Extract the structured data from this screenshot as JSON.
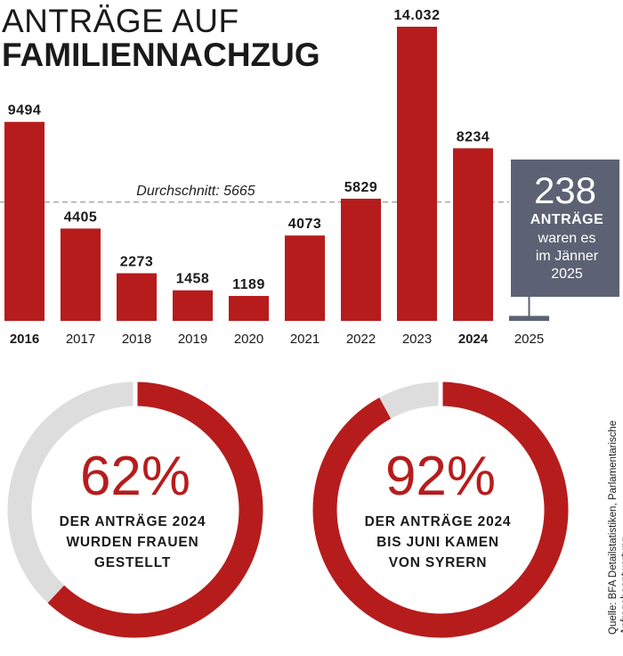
{
  "title": {
    "line1": "ANTRÄGE AUF",
    "line2": "FAMILIENNACHZUG"
  },
  "chart_data": {
    "type": "bar",
    "categories": [
      "2016",
      "2017",
      "2018",
      "2019",
      "2020",
      "2021",
      "2022",
      "2023",
      "2024",
      "2025"
    ],
    "bold_categories": [
      "2016",
      "2024"
    ],
    "values": [
      9494,
      4405,
      2273,
      1458,
      1189,
      4073,
      5829,
      14032,
      8234,
      238
    ],
    "value_labels": [
      "9494",
      "4405",
      "2273",
      "1458",
      "1189",
      "4073",
      "5829",
      "14.032",
      "8234",
      ""
    ],
    "average": {
      "label": "Durchschnitt: 5665",
      "value": 5665
    },
    "bar_color": "#b71c1c",
    "callout": {
      "number": "238",
      "unit": "ANTRÄGE",
      "lines": [
        "waren es",
        "im Jänner",
        "2025"
      ],
      "color": "#5c6273"
    },
    "ylim": [
      0,
      14032
    ]
  },
  "donuts": [
    {
      "percent": 62,
      "percent_label": "62%",
      "lines": [
        "DER ANTRÄGE 2024",
        "WURDEN FRAUEN",
        "GESTELLT"
      ]
    },
    {
      "percent": 92,
      "percent_label": "92%",
      "lines": [
        "DER ANTRÄGE 2024",
        "BIS JUNI KAMEN",
        "VON SYRERN"
      ]
    }
  ],
  "colors": {
    "accent": "#b71c1c",
    "track": "#dddddd",
    "callout": "#5c6273"
  },
  "source": "Quelle: BFA Detailstatistiken, Parlamentarische Anfragebeantwortung"
}
